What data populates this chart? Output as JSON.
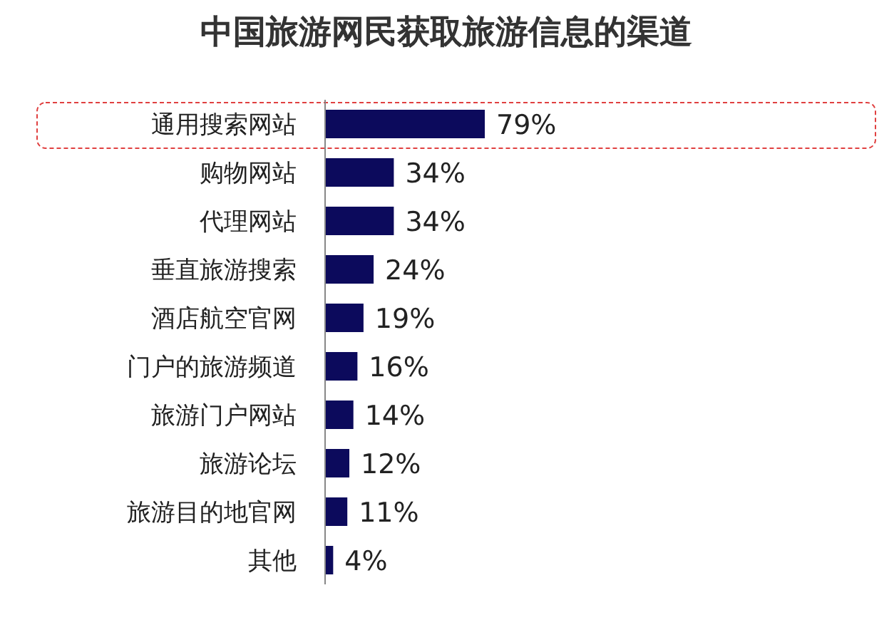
{
  "chart_data": {
    "type": "bar",
    "orientation": "horizontal",
    "title": "中国旅游网民获取旅游信息的渠道",
    "categories": [
      "通用搜索网站",
      "购物网站",
      "代理网站",
      "垂直旅游搜索",
      "酒店航空官网",
      "门户的旅游频道",
      "旅游门户网站",
      "旅游论坛",
      "旅游目的地官网",
      "其他"
    ],
    "values": [
      79,
      34,
      34,
      24,
      19,
      16,
      14,
      12,
      11,
      4
    ],
    "value_labels": [
      "79%",
      "34%",
      "34%",
      "24%",
      "19%",
      "16%",
      "14%",
      "12%",
      "11%",
      "4%"
    ],
    "color": "#0c0a5c"
  }
}
